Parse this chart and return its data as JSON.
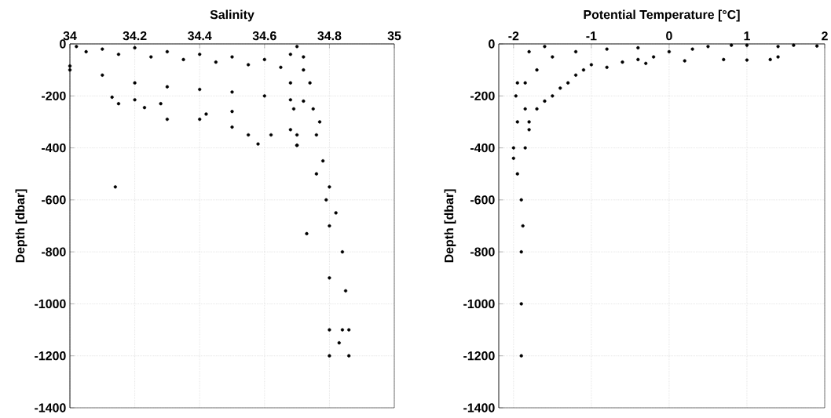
{
  "chart_data": [
    {
      "type": "scatter",
      "title": "Salinity",
      "ylabel": "Depth [dbar]",
      "xlim": [
        34,
        35
      ],
      "ylim": [
        -1400,
        0
      ],
      "xticks": [
        34,
        34.2,
        34.4,
        34.6,
        34.8,
        35
      ],
      "yticks": [
        0,
        -200,
        -400,
        -600,
        -800,
        -1000,
        -1200,
        -1400
      ],
      "grid": true,
      "color": "#000000",
      "x": [
        34.02,
        34.05,
        34.1,
        34.15,
        34.2,
        34.25,
        34.3,
        34.35,
        34.4,
        34.45,
        34.5,
        34.55,
        34.6,
        34.65,
        34.68,
        34.7,
        34.72,
        34.0,
        34.0,
        34.1,
        34.2,
        34.3,
        34.4,
        34.5,
        34.6,
        34.68,
        34.72,
        34.13,
        34.15,
        34.2,
        34.23,
        34.28,
        34.3,
        34.4,
        34.42,
        34.5,
        34.5,
        34.55,
        34.58,
        34.62,
        34.68,
        34.7,
        34.14,
        34.73,
        34.68,
        34.69,
        34.7,
        34.7,
        34.72,
        34.74,
        34.75,
        34.76,
        34.78,
        34.8,
        34.82,
        34.84,
        34.85,
        34.86,
        34.86,
        34.8,
        34.8,
        34.8,
        34.8,
        34.83,
        34.84,
        34.77,
        34.76,
        34.79
      ],
      "values": [
        -10,
        -30,
        -20,
        -40,
        -15,
        -50,
        -30,
        -60,
        -40,
        -70,
        -50,
        -80,
        -60,
        -90,
        -40,
        -10,
        -100,
        -85,
        -100,
        -120,
        -150,
        -165,
        -175,
        -185,
        -200,
        -215,
        -220,
        -205,
        -230,
        -215,
        -245,
        -230,
        -290,
        -290,
        -270,
        -260,
        -320,
        -350,
        -385,
        -350,
        -330,
        -390,
        -550,
        -730,
        -150,
        -250,
        -350,
        -390,
        -50,
        -150,
        -250,
        -350,
        -450,
        -550,
        -650,
        -800,
        -950,
        -1100,
        -1200,
        -700,
        -900,
        -1100,
        -1200,
        -1150,
        -1100,
        -300,
        -500,
        -600
      ]
    },
    {
      "type": "scatter",
      "title": "Potential Temperature [°C]",
      "ylabel": "Depth [dbar]",
      "xlim": [
        -2.19,
        2
      ],
      "ylim": [
        -1400,
        0
      ],
      "xticks": [
        -2,
        -1,
        0,
        1,
        2
      ],
      "yticks": [
        0,
        -200,
        -400,
        -600,
        -800,
        -1000,
        -1200,
        -1400
      ],
      "grid": true,
      "color": "#000000",
      "x": [
        -1.9,
        -1.9,
        -1.9,
        -1.88,
        -1.9,
        -1.95,
        -2.0,
        -2.0,
        -1.95,
        -1.97,
        -1.95,
        -1.85,
        -1.8,
        -1.8,
        -1.7,
        -1.6,
        -1.5,
        -1.4,
        -1.3,
        -1.2,
        -1.1,
        -1.0,
        -0.8,
        -0.6,
        -0.4,
        -0.2,
        0.0,
        0.3,
        0.5,
        0.8,
        1.0,
        1.4,
        1.6,
        1.9,
        1.4,
        1.3,
        1.0,
        0.7,
        0.2,
        -0.3,
        -1.5,
        -1.7,
        -1.8,
        -1.6,
        -1.2,
        -0.8,
        -0.4,
        -1.85,
        -1.85
      ],
      "values": [
        -1200,
        -1000,
        -800,
        -700,
        -600,
        -500,
        -440,
        -400,
        -300,
        -200,
        -150,
        -400,
        -330,
        -300,
        -250,
        -220,
        -200,
        -170,
        -150,
        -120,
        -100,
        -80,
        -90,
        -70,
        -60,
        -50,
        -30,
        -20,
        -10,
        -5,
        -5,
        -10,
        -5,
        -8,
        -50,
        -60,
        -62,
        -60,
        -65,
        -75,
        -50,
        -100,
        -30,
        -10,
        -30,
        -20,
        -15,
        -150,
        -250
      ]
    }
  ]
}
